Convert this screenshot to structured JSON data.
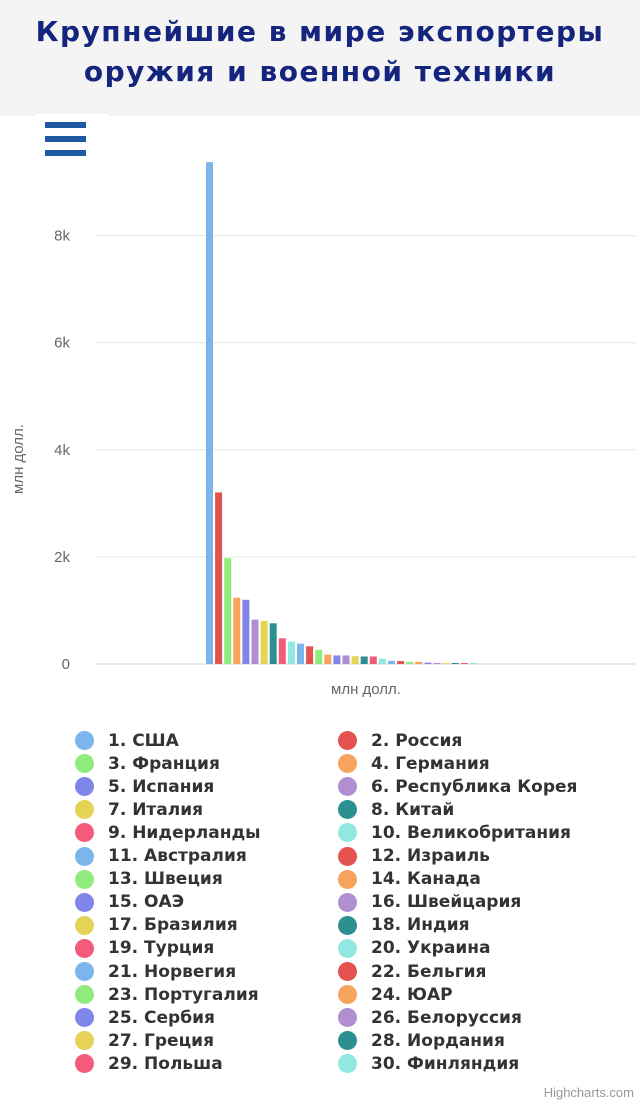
{
  "header": {
    "title_line1": "Крупнейшие в мире экспортеры",
    "title_line2": "оружия и военной техники"
  },
  "menu": {
    "icon": "hamburger-menu-icon"
  },
  "credits": "Highcharts.com",
  "chart_data": {
    "type": "bar",
    "title": "Крупнейшие в мире экспортеры оружия и военной техники",
    "xlabel": "млн долл.",
    "ylabel": "млн долл.",
    "ylim": [
      0,
      9300
    ],
    "yticks": [
      0,
      2000,
      4000,
      6000,
      8000
    ],
    "ytick_labels": [
      "0",
      "2k",
      "4k",
      "6k",
      "8k"
    ],
    "grid": true,
    "legend_position": "bottom",
    "series": [
      {
        "name": "1. США",
        "value": 9372,
        "color": "#7cb5ec"
      },
      {
        "name": "2. Россия",
        "value": 3204,
        "color": "#e4534f"
      },
      {
        "name": "3. Франция",
        "value": 1978,
        "color": "#90ed7d"
      },
      {
        "name": "4. Германия",
        "value": 1238,
        "color": "#f7a35c"
      },
      {
        "name": "5. Испания",
        "value": 1200,
        "color": "#8085e9"
      },
      {
        "name": "6. Республика Корея",
        "value": 828,
        "color": "#b08fd0"
      },
      {
        "name": "7. Италия",
        "value": 806,
        "color": "#e4d354"
      },
      {
        "name": "8. Китай",
        "value": 760,
        "color": "#2b908f"
      },
      {
        "name": "9. Нидерланды",
        "value": 480,
        "color": "#f45b7a"
      },
      {
        "name": "10. Великобритания",
        "value": 420,
        "color": "#91e8e1"
      },
      {
        "name": "11. Австралия",
        "value": 380,
        "color": "#7cb5ec"
      },
      {
        "name": "12. Израиль",
        "value": 330,
        "color": "#e4534f"
      },
      {
        "name": "13. Швеция",
        "value": 265,
        "color": "#90ed7d"
      },
      {
        "name": "14. Канада",
        "value": 175,
        "color": "#f7a35c"
      },
      {
        "name": "15. ОАЭ",
        "value": 160,
        "color": "#8085e9"
      },
      {
        "name": "16. Швейцария",
        "value": 160,
        "color": "#b08fd0"
      },
      {
        "name": "17. Бразилия",
        "value": 145,
        "color": "#e4d354"
      },
      {
        "name": "18. Индия",
        "value": 140,
        "color": "#2b908f"
      },
      {
        "name": "19. Турция",
        "value": 140,
        "color": "#f45b7a"
      },
      {
        "name": "20. Украина",
        "value": 100,
        "color": "#91e8e1"
      },
      {
        "name": "21. Норвегия",
        "value": 60,
        "color": "#7cb5ec"
      },
      {
        "name": "22. Бельгия",
        "value": 55,
        "color": "#e4534f"
      },
      {
        "name": "23. Португалия",
        "value": 40,
        "color": "#90ed7d"
      },
      {
        "name": "24. ЮАР",
        "value": 40,
        "color": "#f7a35c"
      },
      {
        "name": "25. Сербия",
        "value": 25,
        "color": "#8085e9"
      },
      {
        "name": "26. Белоруссия",
        "value": 20,
        "color": "#b08fd0"
      },
      {
        "name": "27. Греция",
        "value": 15,
        "color": "#e4d354"
      },
      {
        "name": "28. Иордания",
        "value": 12,
        "color": "#2b908f"
      },
      {
        "name": "29. Польша",
        "value": 10,
        "color": "#f45b7a"
      },
      {
        "name": "30. Финляндия",
        "value": 8,
        "color": "#91e8e1"
      }
    ]
  }
}
